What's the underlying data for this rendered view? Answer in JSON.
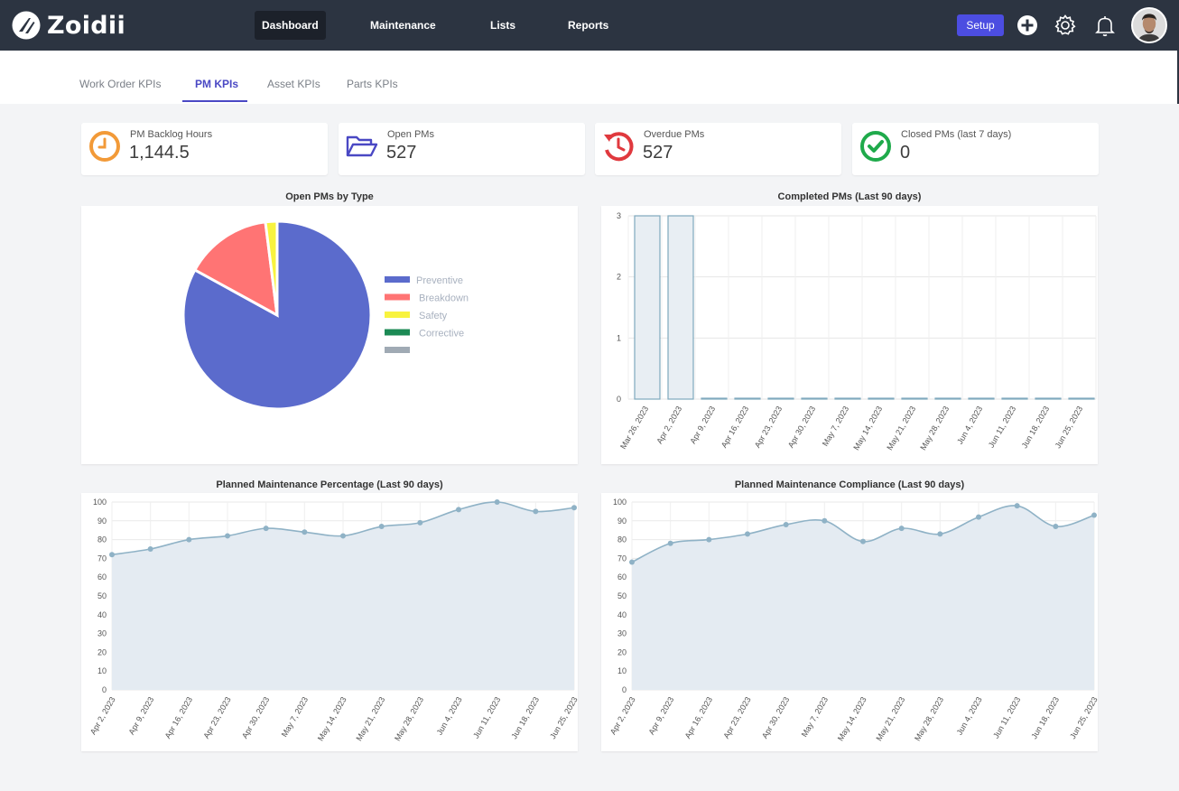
{
  "app": {
    "name": "Zoidii"
  },
  "nav": {
    "items": [
      "Dashboard",
      "Maintenance",
      "Lists",
      "Reports"
    ],
    "setup_label": "Setup"
  },
  "tabs": [
    "Work Order KPIs",
    "PM KPIs",
    "Asset KPIs",
    "Parts KPIs"
  ],
  "kpis": [
    {
      "label": "PM Backlog Hours",
      "value": "1,144.5",
      "icon": "clock-icon",
      "color": "#f29a38"
    },
    {
      "label": "Open PMs",
      "value": "527",
      "icon": "folder-open-icon",
      "color": "#4a48c4"
    },
    {
      "label": "Overdue PMs",
      "value": "527",
      "icon": "overdue-clock-icon",
      "color": "#e0393e"
    },
    {
      "label": "Closed PMs (last 7 days)",
      "value": "0",
      "icon": "check-circle-icon",
      "color": "#1faa4b"
    }
  ],
  "chart_data": [
    {
      "type": "pie",
      "title": "Open PMs by Type",
      "categories": [
        "Preventive",
        "Breakdown",
        "Safety",
        "Corrective",
        ""
      ],
      "values": [
        83,
        15,
        2,
        0,
        0
      ],
      "colors": [
        "#5b6bcc",
        "#ff7474",
        "#f8f33f",
        "#1c8a55",
        "#a0aab4"
      ],
      "legend": "right"
    },
    {
      "type": "bar",
      "title": "Completed PMs (Last 90 days)",
      "categories": [
        "Mar 26, 2023",
        "Apr 2, 2023",
        "Apr 9, 2023",
        "Apr 16, 2023",
        "Apr 23, 2023",
        "Apr 30, 2023",
        "May 7, 2023",
        "May 14, 2023",
        "May 21, 2023",
        "May 28, 2023",
        "Jun 4, 2023",
        "Jun 11, 2023",
        "Jun 18, 2023",
        "Jun 25, 2023"
      ],
      "values": [
        3,
        3,
        0,
        0,
        0,
        0,
        0,
        0,
        0,
        0,
        0,
        0,
        0,
        0
      ],
      "ylim": [
        0,
        3
      ],
      "yticks": [
        0,
        1,
        2,
        3
      ],
      "grid": true
    },
    {
      "type": "area",
      "title": "Planned Maintenance Percentage (Last 90 days)",
      "categories": [
        "Apr 2, 2023",
        "Apr 9, 2023",
        "Apr 16, 2023",
        "Apr 23, 2023",
        "Apr 30, 2023",
        "May 7, 2023",
        "May 14, 2023",
        "May 21, 2023",
        "May 28, 2023",
        "Jun 4, 2023",
        "Jun 11, 2023",
        "Jun 18, 2023",
        "Jun 25, 2023"
      ],
      "values": [
        72,
        75,
        80,
        82,
        86,
        84,
        82,
        87,
        89,
        96,
        100,
        95,
        97
      ],
      "ylim": [
        0,
        100
      ],
      "yticks": [
        0,
        10,
        20,
        30,
        40,
        50,
        60,
        70,
        80,
        90,
        100
      ],
      "grid": true
    },
    {
      "type": "area",
      "title": "Planned Maintenance Compliance (Last 90 days)",
      "categories": [
        "Apr 2, 2023",
        "Apr 9, 2023",
        "Apr 16, 2023",
        "Apr 23, 2023",
        "Apr 30, 2023",
        "May 7, 2023",
        "May 14, 2023",
        "May 21, 2023",
        "May 28, 2023",
        "Jun 4, 2023",
        "Jun 11, 2023",
        "Jun 18, 2023",
        "Jun 25, 2023"
      ],
      "values": [
        68,
        78,
        80,
        83,
        88,
        90,
        79,
        86,
        83,
        92,
        98,
        87,
        93
      ],
      "ylim": [
        0,
        100
      ],
      "yticks": [
        0,
        10,
        20,
        30,
        40,
        50,
        60,
        70,
        80,
        90,
        100
      ],
      "grid": true
    }
  ]
}
